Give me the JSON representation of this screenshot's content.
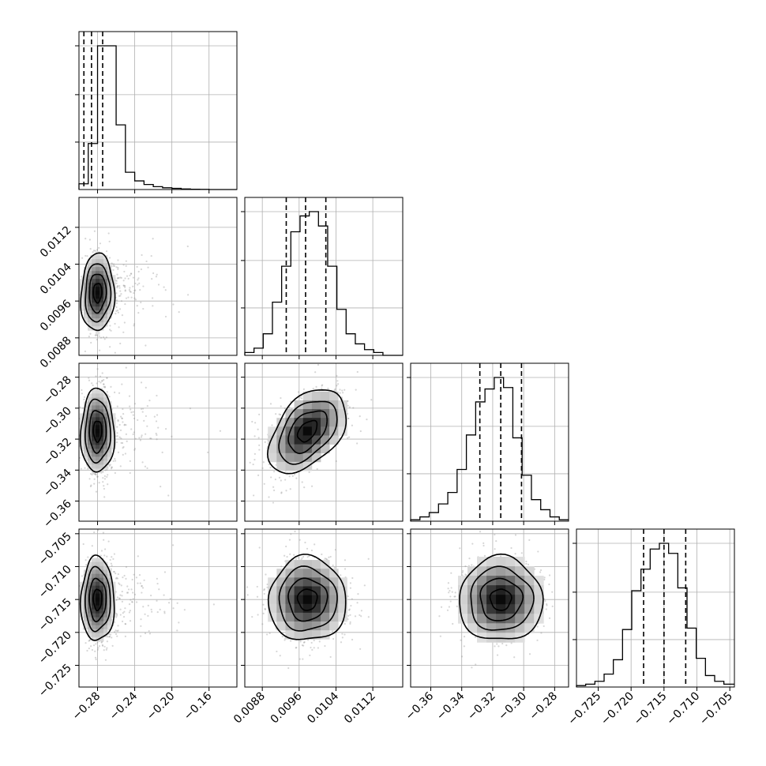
{
  "chart_data": {
    "type": "corner",
    "parameters": [
      {
        "index": 0,
        "range": [
          -0.3,
          -0.13
        ],
        "ticks": [
          -0.28,
          -0.24,
          -0.2,
          -0.16
        ],
        "tick_labels": [
          "−0.28",
          "−0.24",
          "−0.20",
          "−0.16"
        ],
        "quantiles": [
          -0.2947,
          -0.2865,
          -0.2745
        ],
        "hist_bins": [
          -0.3,
          -0.29,
          -0.28,
          -0.27,
          -0.26,
          -0.25,
          -0.24,
          -0.23,
          -0.22,
          -0.21,
          -0.2,
          -0.19,
          -0.18,
          -0.17,
          -0.16,
          -0.15,
          -0.14,
          -0.13
        ],
        "hist_counts": [
          0.04,
          0.32,
          1.0,
          1.0,
          0.45,
          0.12,
          0.06,
          0.035,
          0.02,
          0.012,
          0.008,
          0.004,
          0.002,
          0.001,
          0.0,
          0.0,
          0.0
        ],
        "mode": -0.28,
        "spread": 0.009
      },
      {
        "index": 1,
        "range": [
          0.00842,
          0.01185
        ],
        "ticks": [
          0.0088,
          0.0096,
          0.0104,
          0.0112
        ],
        "tick_labels": [
          "0.0088",
          "0.0096",
          "0.0104",
          "0.0112"
        ],
        "quantiles": [
          0.00932,
          0.00974,
          0.01018
        ],
        "hist_bins": [
          0.00842,
          0.00862,
          0.00882,
          0.00902,
          0.00922,
          0.00942,
          0.00962,
          0.00982,
          0.01002,
          0.01022,
          0.01042,
          0.01062,
          0.01082,
          0.01102,
          0.01122,
          0.01142,
          0.01162,
          0.01185
        ],
        "hist_counts": [
          0.02,
          0.05,
          0.15,
          0.37,
          0.62,
          0.86,
          0.97,
          1.0,
          0.9,
          0.62,
          0.32,
          0.15,
          0.08,
          0.04,
          0.02,
          0.0,
          0.0
        ],
        "mode": 0.00978,
        "spread": 0.00042
      },
      {
        "index": 2,
        "range": [
          -0.373,
          -0.271
        ],
        "ticks": [
          -0.36,
          -0.34,
          -0.32,
          -0.3,
          -0.28
        ],
        "tick_labels": [
          "−0.36",
          "−0.34",
          "−0.32",
          "−0.30",
          "−0.28"
        ],
        "quantiles": [
          -0.3283,
          -0.3148,
          -0.3014
        ],
        "hist_bins": [
          -0.373,
          -0.367,
          -0.361,
          -0.355,
          -0.349,
          -0.343,
          -0.337,
          -0.331,
          -0.325,
          -0.319,
          -0.313,
          -0.307,
          -0.301,
          -0.295,
          -0.289,
          -0.283,
          -0.277,
          -0.271
        ],
        "hist_counts": [
          0.01,
          0.03,
          0.06,
          0.12,
          0.2,
          0.36,
          0.6,
          0.83,
          0.92,
          1.0,
          0.93,
          0.58,
          0.32,
          0.15,
          0.08,
          0.03,
          0.01
        ],
        "mode": -0.3148,
        "spread": 0.0135
      },
      {
        "index": 3,
        "range": [
          -0.7283,
          -0.7043
        ],
        "ticks": [
          -0.725,
          -0.72,
          -0.715,
          -0.71,
          -0.705
        ],
        "tick_labels": [
          "−0.725",
          "−0.720",
          "−0.715",
          "−0.710",
          "−0.705"
        ],
        "quantiles": [
          -0.7181,
          -0.715,
          -0.7117
        ],
        "hist_bins": [
          -0.7283,
          -0.7269,
          -0.7255,
          -0.7241,
          -0.7227,
          -0.7213,
          -0.7199,
          -0.7185,
          -0.7171,
          -0.7157,
          -0.7143,
          -0.7129,
          -0.7115,
          -0.7101,
          -0.7087,
          -0.7073,
          -0.7059,
          -0.7043
        ],
        "hist_counts": [
          0.01,
          0.02,
          0.04,
          0.09,
          0.19,
          0.4,
          0.67,
          0.82,
          0.96,
          1.0,
          0.93,
          0.69,
          0.41,
          0.2,
          0.08,
          0.04,
          0.02
        ],
        "mode": -0.715,
        "spread": 0.0032
      }
    ],
    "correlations": {
      "1-0": 0.05,
      "2-0": 0.0,
      "2-1": 0.45,
      "3-0": 0.0,
      "3-1": 0.0,
      "3-2": 0.0
    },
    "grid": true,
    "quantile_style": "dashed"
  }
}
